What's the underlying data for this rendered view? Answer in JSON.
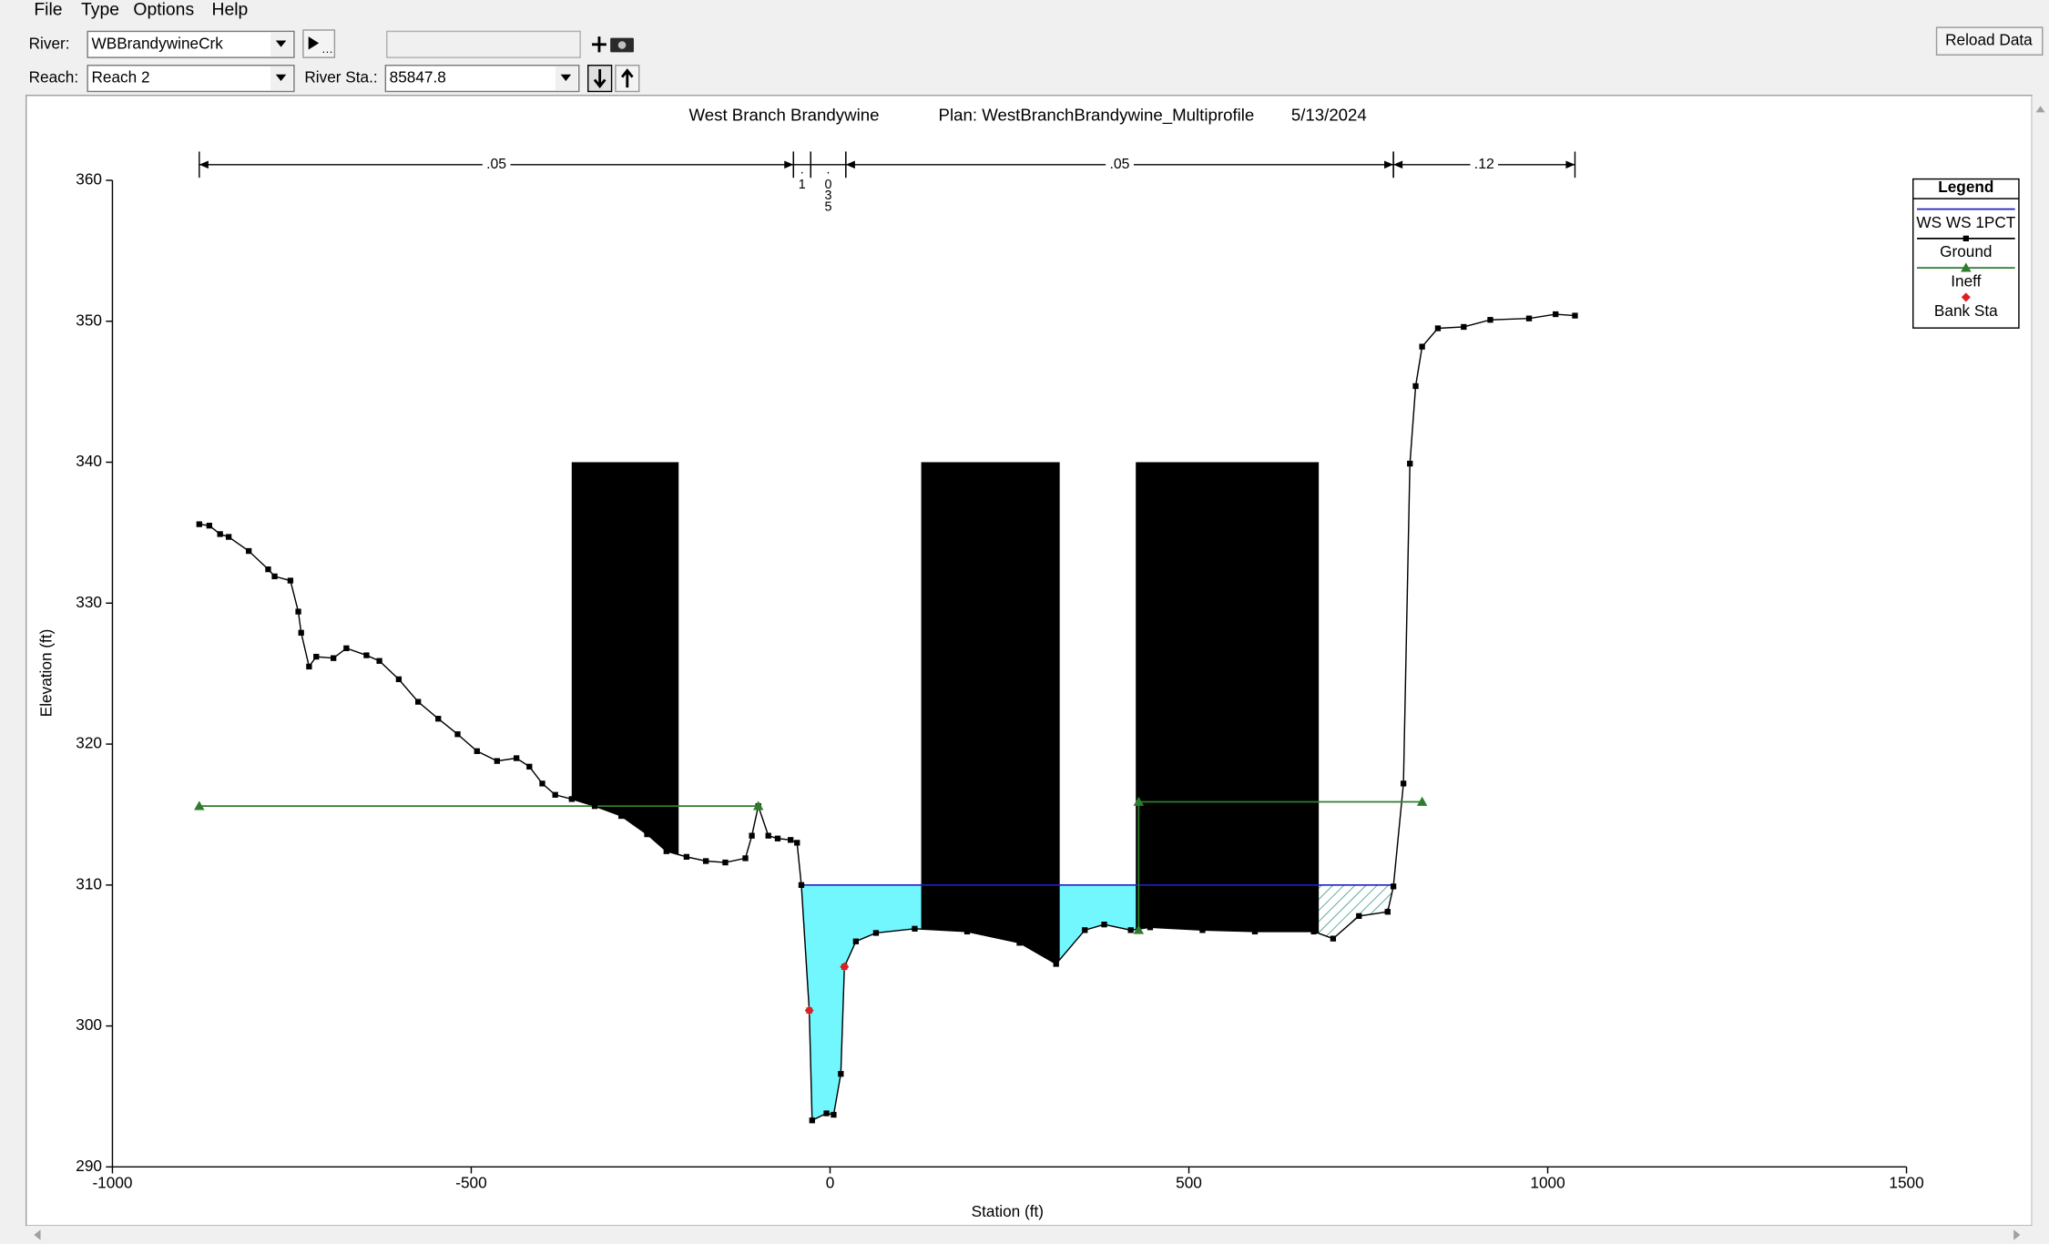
{
  "menu": [
    "File",
    "Type",
    "Options",
    "Help"
  ],
  "toolbar": {
    "river_label": "River:",
    "river": "WBBrandywineCrk",
    "reach_label": "Reach:",
    "reach": "Reach 2",
    "station_label": "River Sta.:",
    "station": "85847.8",
    "reload": "Reload Data"
  },
  "chart_data": {
    "type": "line",
    "title": [
      "West Branch Brandywine",
      "Plan: WestBranchBrandywine_Multiprofile",
      "5/13/2024"
    ],
    "x_label": "Station (ft)",
    "y_label": "Elevation (ft)",
    "xlim": [
      -1000,
      1500
    ],
    "xticks": [
      -1000,
      -500,
      0,
      500,
      1000,
      1500
    ],
    "ylim": [
      290,
      360
    ],
    "yticks": [
      290,
      300,
      310,
      320,
      330,
      340,
      350,
      360
    ],
    "legend_title": "Legend",
    "legend": "upper right",
    "series": [
      {
        "name": "WS WS 1PCT",
        "color": "#2020c0",
        "fill": "#73f7ff",
        "x": [
          -40,
          785
        ],
        "values": [
          310,
          310
        ]
      },
      {
        "name": "Ground",
        "color": "#000000",
        "x": [
          -879,
          -865,
          -850,
          -838,
          -810,
          -783,
          -774,
          -752,
          -741,
          -737,
          -726,
          -716,
          -692,
          -674,
          -646,
          -628,
          -601,
          -574,
          -546,
          -519,
          -492,
          -464,
          -437,
          -419,
          -401,
          -383,
          -360,
          -328,
          -291,
          -255,
          -228,
          -200,
          -173,
          -146,
          -118,
          -109,
          -100,
          -86,
          -73,
          -55,
          -46,
          -40,
          -29,
          -25,
          -5,
          5,
          15,
          20,
          36,
          64,
          118,
          191,
          264,
          315,
          355,
          382,
          419,
          446,
          519,
          592,
          674,
          701,
          737,
          777,
          785,
          799,
          808,
          816,
          825,
          847,
          883,
          920,
          974,
          1011,
          1038
        ],
        "values": [
          335.6,
          335.5,
          334.9,
          334.7,
          333.7,
          332.4,
          331.9,
          331.6,
          329.4,
          327.9,
          325.5,
          326.2,
          326.1,
          326.8,
          326.3,
          325.9,
          324.6,
          323.0,
          321.8,
          320.7,
          319.5,
          318.8,
          319.0,
          318.4,
          317.2,
          316.4,
          316.1,
          315.6,
          314.9,
          313.6,
          312.4,
          312.0,
          311.7,
          311.6,
          311.9,
          313.5,
          315.6,
          313.5,
          313.3,
          313.2,
          313.0,
          310.0,
          301.1,
          293.3,
          293.8,
          293.7,
          296.6,
          304.2,
          306.0,
          306.6,
          306.9,
          306.7,
          305.9,
          304.4,
          306.8,
          307.2,
          306.8,
          307.0,
          306.8,
          306.7,
          306.7,
          306.2,
          307.8,
          308.1,
          309.9,
          317.2,
          339.9,
          345.4,
          348.2,
          349.5,
          349.6,
          350.1,
          350.2,
          350.5,
          350.4
        ]
      },
      {
        "name": "Ineff",
        "color": "#2e7d2e",
        "x": [
          -879,
          -100,
          null,
          430,
          430,
          825
        ],
        "values": [
          315.6,
          315.6,
          null,
          306.8,
          315.9,
          315.9
        ]
      },
      {
        "name": "Bank Sta",
        "color": "#e02020",
        "x": [
          -29,
          20
        ],
        "values": [
          301.1,
          304.2
        ]
      }
    ],
    "obstructions": [
      {
        "x": [
          -360,
          -211
        ],
        "top": 340
      },
      {
        "x": [
          127,
          320
        ],
        "top": 340
      },
      {
        "x": [
          426,
          681
        ],
        "top": 340
      }
    ],
    "manning_n": [
      {
        "x": [
          -879,
          -51
        ],
        "n": {
          "value": 0.05,
          "label": ".05"
        }
      },
      {
        "x": [
          -51,
          -27
        ],
        "n": {
          "value": 0.1,
          "label": ".1"
        }
      },
      {
        "x": [
          -27,
          22
        ],
        "n": {
          "value": 0.035,
          "label": ".035"
        }
      },
      {
        "x": [
          22,
          785
        ],
        "n": {
          "value": 0.05,
          "label": ".05"
        }
      },
      {
        "x": [
          785,
          1038
        ],
        "n": {
          "value": 0.12,
          "label": ".12"
        }
      }
    ]
  }
}
